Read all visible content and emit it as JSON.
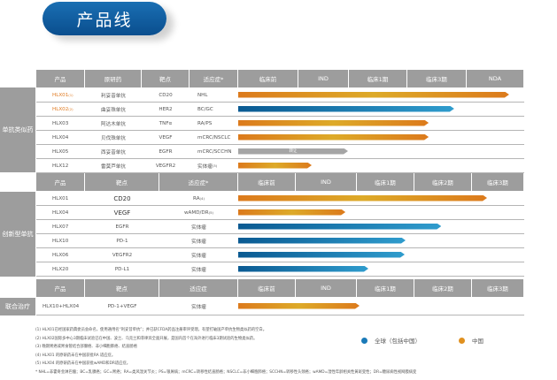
{
  "title": "产品线",
  "colors": {
    "global": "#1a7ab8",
    "china": "#e0901f",
    "header": "#9d9d9d"
  },
  "section1": {
    "label": "单抗类似药",
    "headers": [
      "产品",
      "原研药",
      "靶点",
      "适应症*",
      "临床前",
      "IND",
      "临床1期",
      "临床3期",
      "NDA"
    ],
    "rows": [
      {
        "product": "HLX01",
        "sup": "(1)",
        "originator": "利妥昔单抗",
        "target": "CD20",
        "indication": "NHL",
        "isup": "",
        "region": "china",
        "progress": 0.947,
        "highlight": true
      },
      {
        "product": "HLX02",
        "sup": "(2)",
        "originator": "曲妥珠单抗",
        "target": "HER2",
        "indication": "BC/GC",
        "isup": "",
        "region": "global",
        "progress": 0.755,
        "highlight": true
      },
      {
        "product": "HLX03",
        "sup": "",
        "originator": "阿达木单抗",
        "target": "TNFα",
        "indication": "RA/PS",
        "isup": "",
        "region": "china",
        "progress": 0.666
      },
      {
        "product": "HLX04",
        "sup": "",
        "originator": "贝伐珠单抗",
        "target": "VEGF",
        "indication": "mCRC/NSCLC",
        "isup": "",
        "region": "china",
        "progress": 0.666
      },
      {
        "product": "HLX05",
        "sup": "",
        "originator": "西妥昔单抗",
        "target": "EGFR",
        "indication": "mCRC/SCCHN",
        "isup": "",
        "region": "transfer",
        "progress": 0.384,
        "bar_label": "转让"
      },
      {
        "product": "HLX12",
        "sup": "",
        "originator": "雷莫芦单抗",
        "target": "VEGFR2",
        "indication": "实体瘤",
        "isup": "(3)",
        "region": "china",
        "progress": 0.257
      }
    ]
  },
  "section2": {
    "label": "创新型单抗",
    "headers": [
      "产品",
      "靶点",
      "适应症*",
      "临床前",
      "IND",
      "临床1期",
      "临床2期",
      "临床3期"
    ],
    "rows": [
      {
        "product": "HLX01",
        "target": "CD20",
        "indication": "RA",
        "isup": "(4)",
        "region": "china",
        "progress": 0.87,
        "big": true
      },
      {
        "product": "HLX04",
        "target": "VEGF",
        "indication": "wAMD/DR",
        "isup": "(5)",
        "region": "china",
        "progress": 0.375,
        "big": true
      },
      {
        "product": "HLX07",
        "target": "EGFR",
        "indication": "实体瘤",
        "isup": "",
        "region": "global",
        "progress": 0.71
      },
      {
        "product": "HLX10",
        "target": "PD-1",
        "indication": "实体瘤",
        "isup": "",
        "region": "global",
        "progress": 0.585
      },
      {
        "product": "HLX06",
        "target": "VEGFR2",
        "indication": "实体瘤",
        "isup": "",
        "region": "global",
        "progress": 0.582
      },
      {
        "product": "HLX20",
        "target": "PD-L1",
        "indication": "实体瘤",
        "isup": "",
        "region": "global",
        "progress": 0.455
      }
    ]
  },
  "section3": {
    "label": "联合治疗",
    "headers": [
      "产品",
      "靶点",
      "适应症",
      "临床前",
      "IND",
      "临床1期",
      "临床2期",
      "临床3期"
    ],
    "rows": [
      {
        "product": "HLX10+HLX04",
        "target": "PD-1+VEGF",
        "indication": "实体瘤",
        "isup": "",
        "region": "china",
        "progress": 0.424
      }
    ]
  },
  "legend": {
    "global": "全球（包括中国）",
    "china": "中国"
  },
  "footnotes": [
    "(1) HLX01已经国家药典委员会命名，使用通用名“利妥昔单抗”；并已获CFDA药品注册审评受理，有望打破国产单抗生物类似药的空白。",
    "(2) HLX02国际多中心3期临床试验已在中国、波兰、乌克兰和菲律宾全面开展，是国内首个在海外进行临床3期试验的生物类似药。",
    "(3) 晚期胃癌或胃食管结合部腺癌、非小细胞肺癌、结直肠癌",
    "(4) HLX01 的原研药未在中国获批RA 适应症。",
    "(5) HLX04 的原研药未在中国获批wAMD和DR适应症。",
    "* NHL=非霍奇金淋巴瘤；BC=乳腺癌；GC=胃癌；RA=类风湿关节炎；PS=银屑病；mCRC=转移性结直肠癌；NSCLC=非小细胞肺癌；SCCHN=转移性头颈癌；wAMD=湿性年龄相关性黄斑变性；DR=糖尿病性视网膜病变"
  ]
}
